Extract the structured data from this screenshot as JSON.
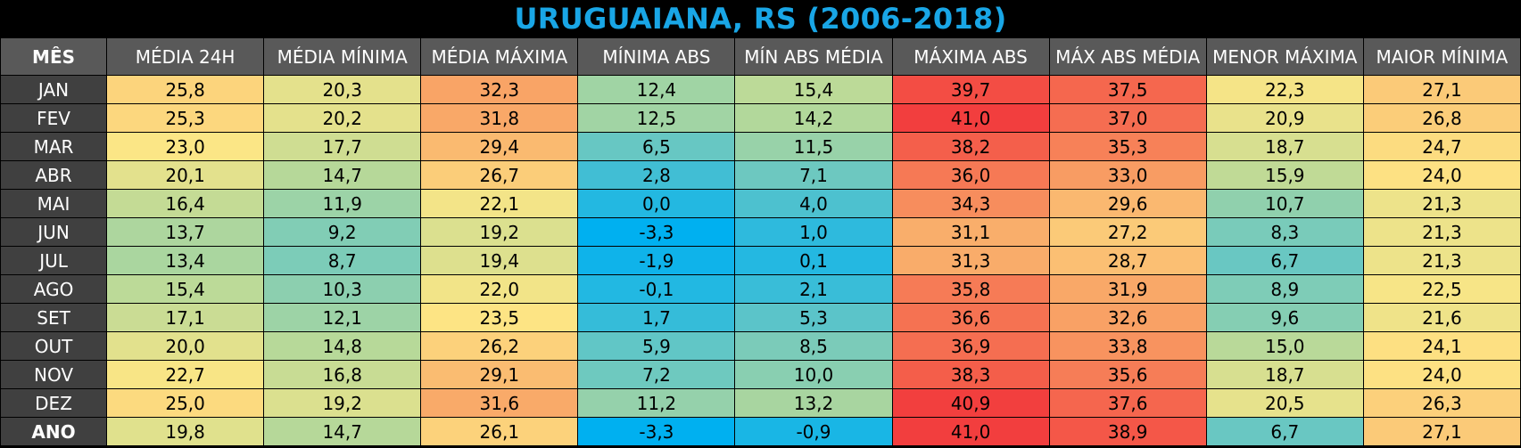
{
  "title": "URUGUAIANA, RS (2006-2018)",
  "chart_data": {
    "type": "table",
    "title": "URUGUAIANA, RS (2006-2018)",
    "header_first": "MÊS",
    "columns": [
      "MÉDIA 24H",
      "MÉDIA MÍNIMA",
      "MÉDIA MÁXIMA",
      "MÍNIMA ABS",
      "MÍN ABS MÉDIA",
      "MÁXIMA ABS",
      "MÁX ABS MÉDIA",
      "MENOR MÁXIMA",
      "MAIOR MÍNIMA"
    ],
    "rows": [
      {
        "label": "JAN",
        "values": [
          "25,8",
          "20,3",
          "32,3",
          "12,4",
          "15,4",
          "39,7",
          "37,5",
          "22,3",
          "27,1"
        ]
      },
      {
        "label": "FEV",
        "values": [
          "25,3",
          "20,2",
          "31,8",
          "12,5",
          "14,2",
          "41,0",
          "37,0",
          "20,9",
          "26,8"
        ]
      },
      {
        "label": "MAR",
        "values": [
          "23,0",
          "17,7",
          "29,4",
          "6,5",
          "11,5",
          "38,2",
          "35,3",
          "18,7",
          "24,7"
        ]
      },
      {
        "label": "ABR",
        "values": [
          "20,1",
          "14,7",
          "26,7",
          "2,8",
          "7,1",
          "36,0",
          "33,0",
          "15,9",
          "24,0"
        ]
      },
      {
        "label": "MAI",
        "values": [
          "16,4",
          "11,9",
          "22,1",
          "0,0",
          "4,0",
          "34,3",
          "29,6",
          "10,7",
          "21,3"
        ]
      },
      {
        "label": "JUN",
        "values": [
          "13,7",
          "9,2",
          "19,2",
          "-3,3",
          "1,0",
          "31,1",
          "27,2",
          "8,3",
          "21,3"
        ]
      },
      {
        "label": "JUL",
        "values": [
          "13,4",
          "8,7",
          "19,4",
          "-1,9",
          "0,1",
          "31,3",
          "28,7",
          "6,7",
          "21,3"
        ]
      },
      {
        "label": "AGO",
        "values": [
          "15,4",
          "10,3",
          "22,0",
          "-0,1",
          "2,1",
          "35,8",
          "31,9",
          "8,9",
          "22,5"
        ]
      },
      {
        "label": "SET",
        "values": [
          "17,1",
          "12,1",
          "23,5",
          "1,7",
          "5,3",
          "36,6",
          "32,6",
          "9,6",
          "21,6"
        ]
      },
      {
        "label": "OUT",
        "values": [
          "20,0",
          "14,8",
          "26,2",
          "5,9",
          "8,5",
          "36,9",
          "33,8",
          "15,0",
          "24,1"
        ]
      },
      {
        "label": "NOV",
        "values": [
          "22,7",
          "16,8",
          "29,1",
          "7,2",
          "10,0",
          "38,3",
          "35,6",
          "18,7",
          "24,0"
        ]
      },
      {
        "label": "DEZ",
        "values": [
          "25,0",
          "19,2",
          "31,6",
          "11,2",
          "13,2",
          "40,9",
          "37,6",
          "20,5",
          "26,3"
        ]
      },
      {
        "label": "ANO",
        "values": [
          "19,8",
          "14,7",
          "26,1",
          "-3,3",
          "-0,9",
          "41,0",
          "38,9",
          "6,7",
          "27,1"
        ]
      }
    ],
    "color_scale": {
      "min_value": -3.3,
      "max_value": 41.0,
      "stops": [
        "#00b0f0",
        "#5ec5c8",
        "#b4d89a",
        "#fde685",
        "#f9a667",
        "#f23e3e"
      ]
    },
    "header_bg": "#595959",
    "month_bg": "#404040"
  }
}
